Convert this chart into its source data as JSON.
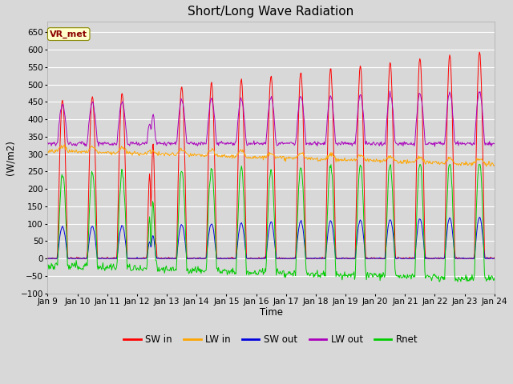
{
  "title": "Short/Long Wave Radiation",
  "xlabel": "Time",
  "ylabel": "(W/m2)",
  "ylim": [
    -100,
    680
  ],
  "yticks": [
    -100,
    -50,
    0,
    50,
    100,
    150,
    200,
    250,
    300,
    350,
    400,
    450,
    500,
    550,
    600,
    650
  ],
  "x_tick_labels": [
    "Jan 9",
    "Jan 10",
    "Jan 11",
    "Jan 12",
    "Jan 13",
    "Jan 14",
    "Jan 15",
    "Jan 16",
    "Jan 17",
    "Jan 18",
    "Jan 19",
    "Jan 20",
    "Jan 21",
    "Jan 22",
    "Jan 23",
    "Jan 24"
  ],
  "bg_color": "#d8d8d8",
  "grid_color": "#ffffff",
  "station_label": "VR_met",
  "legend_entries": [
    "SW in",
    "LW in",
    "SW out",
    "LW out",
    "Rnet"
  ],
  "line_colors": {
    "SW_in": "#ff0000",
    "LW_in": "#ffa500",
    "SW_out": "#0000dd",
    "LW_out": "#aa00bb",
    "Rnet": "#00cc00"
  },
  "n_days": 15,
  "figsize": [
    6.4,
    4.8
  ],
  "dpi": 100
}
